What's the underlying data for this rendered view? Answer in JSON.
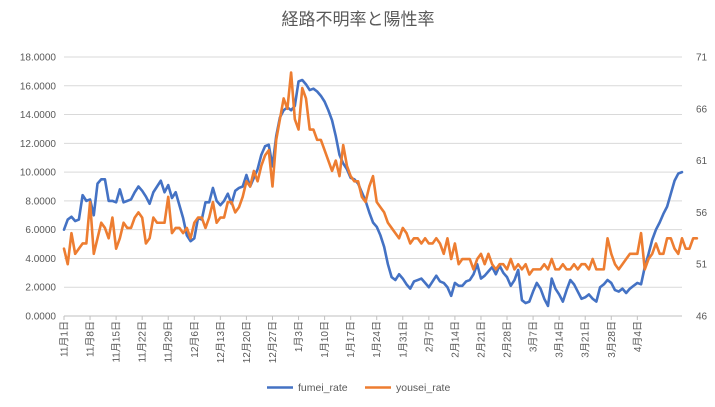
{
  "chart_data": {
    "type": "line",
    "title": "経路不明率と陽性率",
    "xlabel": "",
    "ylabel_left": "",
    "ylabel_right": "",
    "y_left": {
      "min": 0,
      "max": 18,
      "step": 2,
      "tick_labels": [
        "0.0000",
        "2.0000",
        "4.0000",
        "6.0000",
        "8.0000",
        "10.0000",
        "12.0000",
        "14.0000",
        "16.0000",
        "18.0000"
      ]
    },
    "y_right": {
      "min": 46,
      "max": 71,
      "step": 5,
      "tick_labels": [
        "46",
        "51",
        "56",
        "61",
        "66",
        "71"
      ]
    },
    "x_tick_labels": [
      "11月1日",
      "11月8日",
      "11月15日",
      "11月22日",
      "11月29日",
      "12月6日",
      "12月13日",
      "12月20日",
      "12月27日",
      "1月3日",
      "1月10日",
      "1月17日",
      "1月24日",
      "1月31日",
      "2月7日",
      "2月14日",
      "2月21日",
      "2月28日",
      "3月7日",
      "3月14日",
      "3月21日",
      "3月28日",
      "4月4日"
    ],
    "grid": true,
    "legend_position": "bottom",
    "series": [
      {
        "name": "fumei_rate",
        "axis": "left",
        "color": "#4472C4",
        "values": [
          6.0,
          6.7,
          6.9,
          6.6,
          6.7,
          8.4,
          8.0,
          8.1,
          7.0,
          9.2,
          9.5,
          9.5,
          8.0,
          8.0,
          7.9,
          8.8,
          7.9,
          8.0,
          8.1,
          8.6,
          9.0,
          8.7,
          8.3,
          7.8,
          8.6,
          9.0,
          9.4,
          8.6,
          9.1,
          8.2,
          8.6,
          7.7,
          6.8,
          5.6,
          5.2,
          5.4,
          6.8,
          6.7,
          7.9,
          7.9,
          8.9,
          8.0,
          7.7,
          8.0,
          8.5,
          7.8,
          8.7,
          8.9,
          9.0,
          9.8,
          9.0,
          9.6,
          10.2,
          11.2,
          11.8,
          11.9,
          10.4,
          12.5,
          13.8,
          14.3,
          14.5,
          14.3,
          14.6,
          16.3,
          16.4,
          16.1,
          15.7,
          15.8,
          15.6,
          15.3,
          14.9,
          14.3,
          13.6,
          12.5,
          11.2,
          10.6,
          10.2,
          9.6,
          9.5,
          9.2,
          8.6,
          8.0,
          7.2,
          6.5,
          6.2,
          5.6,
          4.8,
          3.6,
          2.7,
          2.5,
          2.9,
          2.6,
          2.2,
          1.9,
          2.4,
          2.5,
          2.6,
          2.3,
          2.0,
          2.4,
          2.8,
          2.4,
          2.3,
          2.0,
          1.4,
          2.3,
          2.1,
          2.1,
          2.4,
          2.5,
          2.9,
          3.6,
          2.6,
          2.8,
          3.1,
          3.4,
          2.9,
          3.5,
          3.0,
          2.7,
          2.1,
          2.5,
          3.2,
          1.1,
          0.9,
          1.0,
          1.7,
          2.3,
          1.9,
          1.2,
          0.7,
          2.6,
          1.9,
          1.5,
          1.0,
          1.8,
          2.5,
          2.2,
          1.7,
          1.2,
          1.3,
          1.5,
          1.2,
          1.0,
          2.0,
          2.2,
          2.5,
          2.3,
          1.8,
          1.7,
          1.9,
          1.6,
          1.9,
          2.1,
          2.3,
          2.2,
          3.4,
          4.3,
          5.3,
          6.0,
          6.5,
          7.1,
          7.6,
          8.5,
          9.4,
          9.9,
          10.0
        ]
      },
      {
        "name": "yousei_rate",
        "axis": "right",
        "color": "#ED7D31",
        "values": [
          52.5,
          51.0,
          54.0,
          52.0,
          52.5,
          53.0,
          53.0,
          57.0,
          52.0,
          53.5,
          55.0,
          54.5,
          53.5,
          55.5,
          52.5,
          53.5,
          55.0,
          54.5,
          54.5,
          55.5,
          56.0,
          55.5,
          53.0,
          53.5,
          55.5,
          55.0,
          55.0,
          55.0,
          57.5,
          54.0,
          54.5,
          54.5,
          54.0,
          54.5,
          53.5,
          55.0,
          55.5,
          55.5,
          54.5,
          55.5,
          57.0,
          55.0,
          55.5,
          55.5,
          57.0,
          57.0,
          56.0,
          56.5,
          57.5,
          59.0,
          58.5,
          60.0,
          59.0,
          60.5,
          61.5,
          62.0,
          58.5,
          63.0,
          65.0,
          67.0,
          66.0,
          69.5,
          65.0,
          64.0,
          68.0,
          67.0,
          64.0,
          64.0,
          63.0,
          63.0,
          62.0,
          61.0,
          60.0,
          61.0,
          59.5,
          62.5,
          60.5,
          59.5,
          59.0,
          59.0,
          57.5,
          57.0,
          58.5,
          59.5,
          57.0,
          56.5,
          56.0,
          55.0,
          54.5,
          54.0,
          53.5,
          54.5,
          54.0,
          53.0,
          53.5,
          53.5,
          53.0,
          53.5,
          53.0,
          53.0,
          53.5,
          53.0,
          52.0,
          53.5,
          51.5,
          53.0,
          51.0,
          51.5,
          51.5,
          51.5,
          50.5,
          51.5,
          52.0,
          51.0,
          52.0,
          51.0,
          50.5,
          51.0,
          51.0,
          50.5,
          51.5,
          50.5,
          51.0,
          50.5,
          51.0,
          50.0,
          50.5,
          50.5,
          50.5,
          51.0,
          50.5,
          51.5,
          50.5,
          50.5,
          51.0,
          50.5,
          50.5,
          51.0,
          50.5,
          51.0,
          51.0,
          50.5,
          51.5,
          50.5,
          50.5,
          50.5,
          53.5,
          52.0,
          51.0,
          50.5,
          51.0,
          51.5,
          52.0,
          52.0,
          52.0,
          54.0,
          50.5,
          51.5,
          52.0,
          53.0,
          52.0,
          52.0,
          53.5,
          53.5,
          52.5,
          52.0,
          53.5,
          52.5,
          52.5,
          53.5,
          53.5
        ]
      }
    ]
  }
}
